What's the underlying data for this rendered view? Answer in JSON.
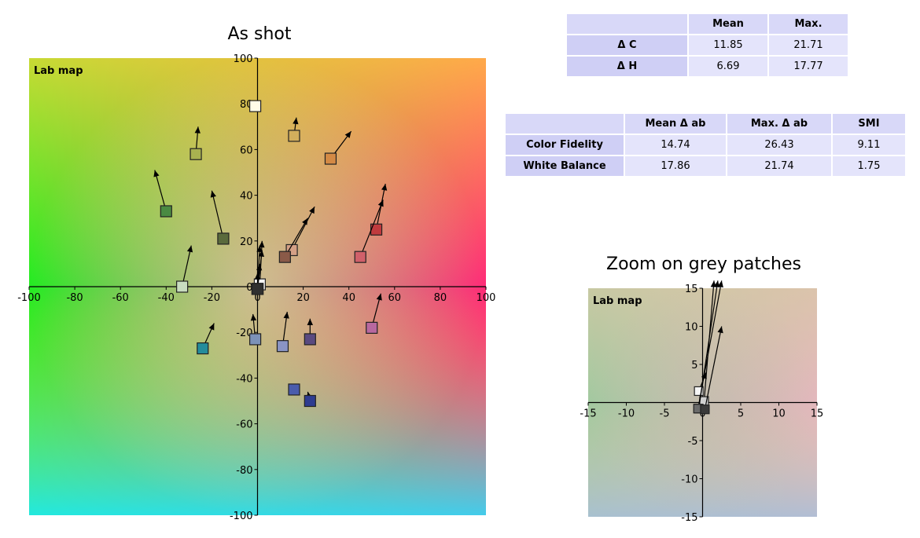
{
  "main_title": "As shot",
  "zoom_title": "Zoom on grey patches",
  "map_label": "Lab map",
  "table_delta": {
    "headers": [
      "",
      "Mean",
      "Max."
    ],
    "rows": [
      {
        "label": "Δ C",
        "values": [
          "11.85",
          "21.71"
        ]
      },
      {
        "label": "Δ H",
        "values": [
          "6.69",
          "17.77"
        ]
      }
    ]
  },
  "table_fidelity": {
    "headers": [
      "",
      "Mean Δ ab",
      "Max. Δ ab",
      "SMI"
    ],
    "rows": [
      {
        "label": "Color Fidelity",
        "values": [
          "14.74",
          "26.43",
          "9.11"
        ]
      },
      {
        "label": "White Balance",
        "values": [
          "17.86",
          "21.74",
          "1.75"
        ]
      }
    ]
  },
  "chart_data": [
    {
      "type": "scatter",
      "title": "As shot",
      "xlim": [
        -100,
        100
      ],
      "ylim": [
        -100,
        100
      ],
      "xticks": [
        -100,
        -80,
        -60,
        -40,
        -20,
        0,
        20,
        40,
        60,
        80,
        100
      ],
      "yticks": [
        -100,
        -80,
        -60,
        -40,
        -20,
        0,
        20,
        40,
        60,
        80,
        100
      ],
      "background": "Lab colour map",
      "patches": [
        {
          "a": -1,
          "b": 79,
          "color": "#fffce8",
          "arrow_to": null
        },
        {
          "a": -27,
          "b": 58,
          "color": "#a9b250",
          "arrow_to": [
            -26,
            70
          ]
        },
        {
          "a": 16,
          "b": 66,
          "color": "#d2ae5c",
          "arrow_to": [
            17,
            74
          ]
        },
        {
          "a": 32,
          "b": 56,
          "color": "#d48a45",
          "arrow_to": [
            41,
            68
          ]
        },
        {
          "a": -40,
          "b": 33,
          "color": "#4a8a42",
          "arrow_to": [
            -45,
            51
          ]
        },
        {
          "a": -15,
          "b": 21,
          "color": "#5a6a3c",
          "arrow_to": [
            -20,
            42
          ]
        },
        {
          "a": 15,
          "b": 16,
          "color": "#d4a086",
          "arrow_to": [
            25,
            35
          ]
        },
        {
          "a": 12,
          "b": 13,
          "color": "#8a5a48",
          "arrow_to": [
            22,
            30
          ]
        },
        {
          "a": 52,
          "b": 25,
          "color": "#c03a3e",
          "arrow_to": [
            56,
            45
          ]
        },
        {
          "a": 45,
          "b": 13,
          "color": "#d0606a",
          "arrow_to": [
            55,
            38
          ]
        },
        {
          "a": 1,
          "b": 1,
          "color": "#f4f4f4",
          "arrow_to": [
            2,
            20
          ]
        },
        {
          "a": 0,
          "b": -1,
          "color": "#bfbfbf",
          "arrow_to": [
            1,
            18
          ]
        },
        {
          "a": 0,
          "b": -1,
          "color": "#828282",
          "arrow_to": [
            2,
            16
          ]
        },
        {
          "a": 0,
          "b": -1,
          "color": "#555555",
          "arrow_to": [
            1,
            10
          ]
        },
        {
          "a": 0,
          "b": -1,
          "color": "#303030",
          "arrow_to": [
            0,
            6
          ]
        },
        {
          "a": -33,
          "b": 0,
          "color": "#c8dcc0",
          "arrow_to": [
            -29,
            18
          ]
        },
        {
          "a": -24,
          "b": -27,
          "color": "#248c9c",
          "arrow_to": [
            -19,
            -16
          ]
        },
        {
          "a": -1,
          "b": -23,
          "color": "#7c92b8",
          "arrow_to": [
            -2,
            -12
          ]
        },
        {
          "a": 11,
          "b": -26,
          "color": "#8a94c4",
          "arrow_to": [
            13,
            -11
          ]
        },
        {
          "a": 23,
          "b": -23,
          "color": "#5a4a80",
          "arrow_to": [
            23,
            -14
          ]
        },
        {
          "a": 50,
          "b": -18,
          "color": "#b868a0",
          "arrow_to": [
            54,
            -3
          ]
        },
        {
          "a": 16,
          "b": -45,
          "color": "#4a5cac",
          "arrow_to": null
        },
        {
          "a": 23,
          "b": -50,
          "color": "#2e3c90",
          "arrow_to": [
            22,
            -46
          ]
        }
      ]
    },
    {
      "type": "scatter",
      "title": "Zoom on grey patches",
      "xlim": [
        -15,
        15
      ],
      "ylim": [
        -15,
        15
      ],
      "xticks": [
        -15,
        -10,
        -5,
        0,
        5,
        10,
        15
      ],
      "yticks": [
        -15,
        -10,
        -5,
        0,
        5,
        10,
        15
      ],
      "background": "Lab colour map",
      "patches": [
        {
          "a": -0.5,
          "b": 1.5,
          "color": "#f6f6f6",
          "arrow_to": [
            0.5,
            4
          ]
        },
        {
          "a": 0.2,
          "b": 0.2,
          "color": "#cfcfcf",
          "arrow_to": [
            1.5,
            16
          ]
        },
        {
          "a": -0.5,
          "b": -0.8,
          "color": "#a0a0a0",
          "arrow_to": [
            2,
            16
          ]
        },
        {
          "a": -0.6,
          "b": -0.8,
          "color": "#6a6a6a",
          "arrow_to": [
            2.5,
            16
          ]
        },
        {
          "a": 0.3,
          "b": -0.9,
          "color": "#3a3a3a",
          "arrow_to": [
            2.5,
            10
          ]
        }
      ]
    }
  ]
}
